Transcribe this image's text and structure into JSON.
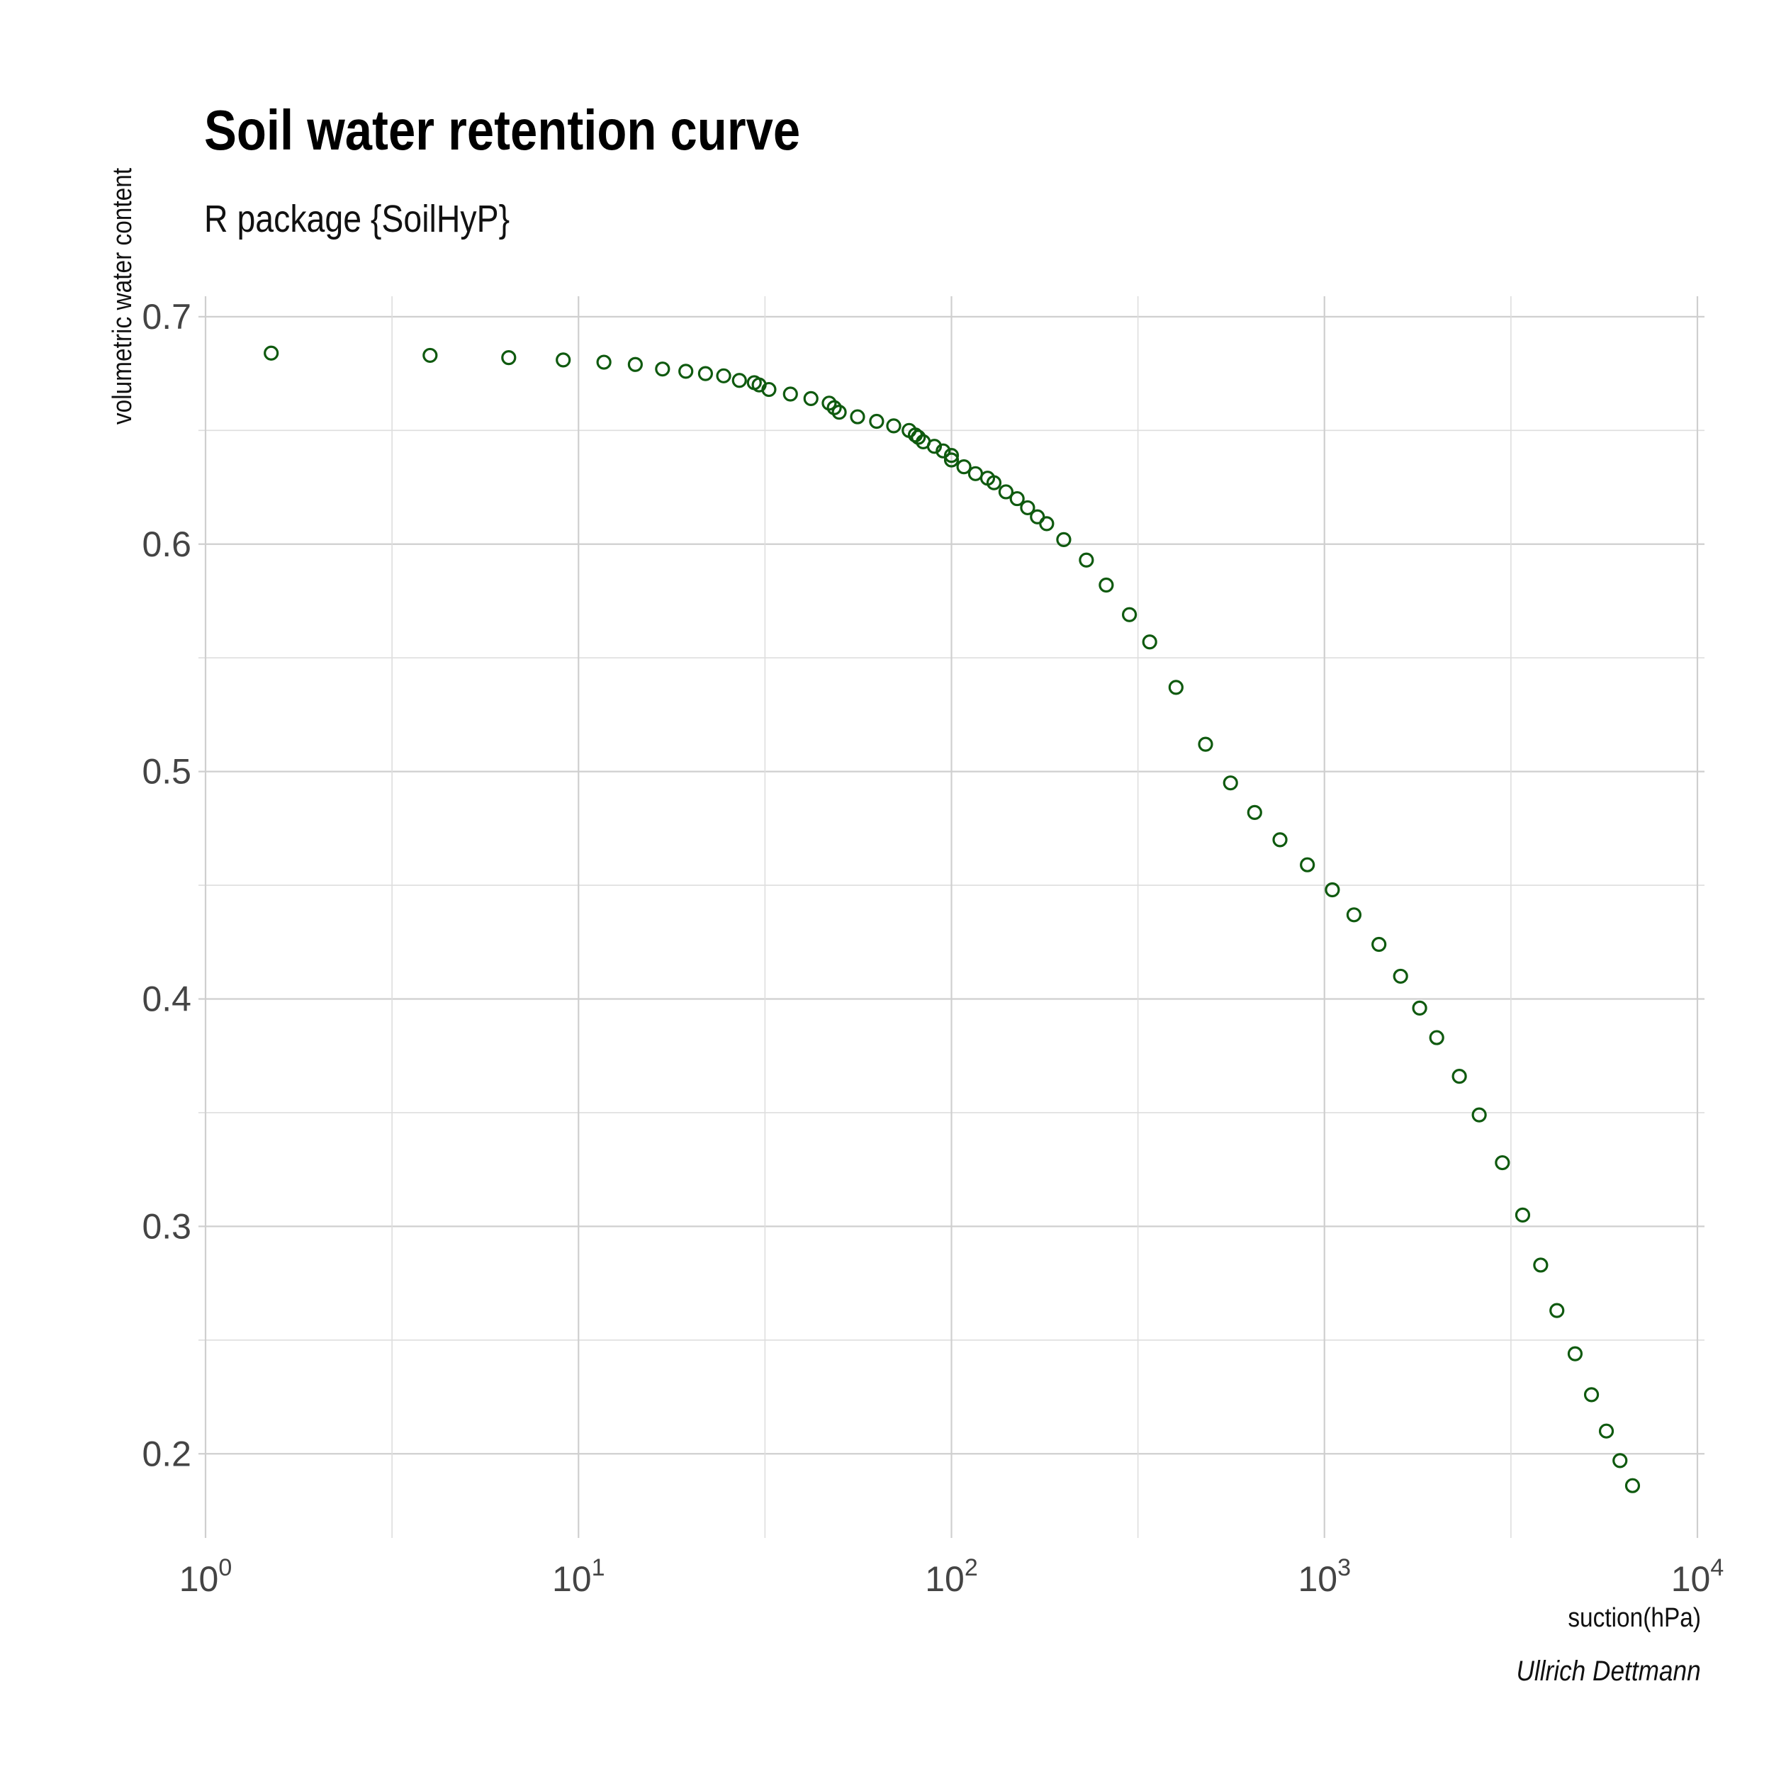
{
  "chart_data": {
    "type": "scatter",
    "title": "Soil water retention curve",
    "subtitle": "R package {SoilHyP}",
    "caption": "Ullrich Dettmann",
    "xlabel": "suction(hPa)",
    "ylabel": "volumetric water content",
    "x_scale": "log10",
    "xlim": [
      1,
      10000
    ],
    "ylim": [
      0.163,
      0.709
    ],
    "x_ticks": [
      {
        "base": "10",
        "exp": "0",
        "value": 1
      },
      {
        "base": "10",
        "exp": "1",
        "value": 10
      },
      {
        "base": "10",
        "exp": "2",
        "value": 100
      },
      {
        "base": "10",
        "exp": "3",
        "value": 1000
      },
      {
        "base": "10",
        "exp": "4",
        "value": 10000
      }
    ],
    "y_ticks": [
      "0.2",
      "0.3",
      "0.4",
      "0.5",
      "0.6",
      "0.7"
    ],
    "grid": true,
    "legend": "none",
    "marker": "open-circle",
    "color": "#0f5a0f",
    "series": [
      {
        "x": [
          1.5,
          4.0,
          6.5,
          9.1,
          11.7,
          14.2,
          16.8,
          19.4,
          21.9,
          24.5,
          27.0,
          29.6,
          30.5,
          32.4,
          37.0,
          42.0,
          47.0,
          48.5,
          50.0,
          56.0,
          63.0,
          70.0,
          77.0,
          80.0,
          81.5,
          84.0,
          90.0,
          95.0,
          100.0,
          100.0,
          108.0,
          116.0,
          125.0,
          130.0,
          140.0,
          150.0,
          160.0,
          170.0,
          180.0,
          200.0,
          230.0,
          260.0,
          300.0,
          340.0,
          400.0,
          480.0,
          560.0,
          650.0,
          760.0,
          900.0,
          1050.0,
          1200.0,
          1400.0,
          1600.0,
          1800.0,
          2000.0,
          2300.0,
          2600.0,
          3000.0,
          3400.0,
          3800.0,
          4200.0,
          4700.0,
          5200.0,
          5700.0,
          6200.0,
          6700.0
        ],
        "y": [
          0.684,
          0.683,
          0.682,
          0.681,
          0.68,
          0.679,
          0.677,
          0.676,
          0.675,
          0.674,
          0.672,
          0.671,
          0.67,
          0.668,
          0.666,
          0.664,
          0.662,
          0.66,
          0.658,
          0.656,
          0.654,
          0.652,
          0.65,
          0.648,
          0.647,
          0.645,
          0.643,
          0.641,
          0.639,
          0.637,
          0.634,
          0.631,
          0.629,
          0.627,
          0.623,
          0.62,
          0.616,
          0.612,
          0.609,
          0.602,
          0.593,
          0.582,
          0.569,
          0.557,
          0.537,
          0.512,
          0.495,
          0.482,
          0.47,
          0.459,
          0.448,
          0.437,
          0.424,
          0.41,
          0.396,
          0.383,
          0.366,
          0.349,
          0.328,
          0.305,
          0.283,
          0.263,
          0.244,
          0.226,
          0.21,
          0.197,
          0.186
        ]
      }
    ]
  }
}
